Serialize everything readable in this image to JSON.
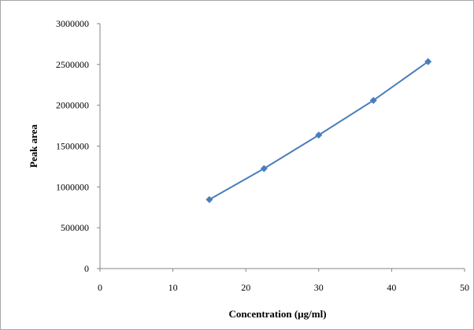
{
  "chart_data": {
    "type": "line",
    "title": "",
    "xlabel": "Concentration (µg/ml)",
    "ylabel": "Peak  area",
    "xlim": [
      0,
      50
    ],
    "ylim": [
      0,
      3000000
    ],
    "x_ticks": [
      0,
      10,
      20,
      30,
      40,
      50
    ],
    "y_ticks": [
      0,
      500000,
      1000000,
      1500000,
      2000000,
      2500000,
      3000000
    ],
    "grid": false,
    "legend": "none",
    "series": [
      {
        "color": "#4a7ebb",
        "marker": "diamond",
        "x": [
          15,
          22.5,
          30,
          37.5,
          45
        ],
        "y": [
          845000,
          1225000,
          1635000,
          2060000,
          2535000
        ]
      }
    ]
  }
}
